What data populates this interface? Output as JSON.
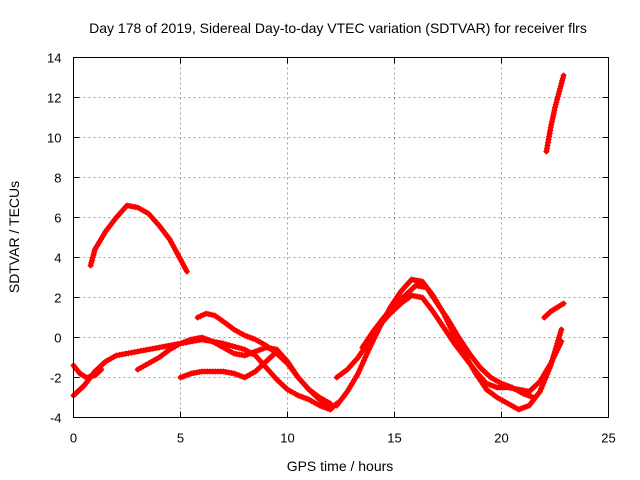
{
  "chart_data": {
    "type": "scatter",
    "title": "Day 178 of 2019, Sidereal Day-to-day VTEC variation (SDTVAR) for receiver flrs",
    "xlabel": "GPS time / hours",
    "ylabel": "SDTVAR / TECUs",
    "xlim": [
      0,
      25
    ],
    "ylim": [
      -4,
      14
    ],
    "xticks": [
      "0",
      "5",
      "10",
      "15",
      "20",
      "25"
    ],
    "yticks": [
      "-4",
      "-2",
      "0",
      "2",
      "4",
      "6",
      "8",
      "10",
      "12",
      "14"
    ],
    "grid": true,
    "marker": "plus",
    "color": "#ff0000",
    "series": [
      {
        "name": "arc1",
        "x": [
          0.8,
          1.0,
          1.5,
          2.0,
          2.5,
          3.0,
          3.5,
          4.0,
          4.5,
          5.0,
          5.3
        ],
        "y": [
          3.6,
          4.4,
          5.3,
          6.0,
          6.6,
          6.5,
          6.2,
          5.6,
          4.9,
          3.9,
          3.3
        ]
      },
      {
        "name": "arc2",
        "x": [
          0.0,
          0.5,
          1.0,
          1.5,
          2.0,
          3.0,
          4.0,
          5.0,
          6.0,
          7.0,
          8.0,
          8.5,
          9.0,
          9.5,
          10.0,
          10.5,
          11.0,
          11.5,
          12.0,
          12.3
        ],
        "y": [
          -2.9,
          -2.4,
          -1.7,
          -1.2,
          -0.9,
          -0.7,
          -0.5,
          -0.3,
          -0.1,
          -0.3,
          -0.6,
          -0.9,
          -1.5,
          -2.1,
          -2.6,
          -2.9,
          -3.1,
          -3.4,
          -3.6,
          -3.3
        ]
      },
      {
        "name": "arc3",
        "x": [
          0.0,
          0.3,
          0.6,
          1.0,
          1.3
        ],
        "y": [
          -1.4,
          -1.8,
          -2.0,
          -1.9,
          -1.6
        ]
      },
      {
        "name": "arc4",
        "x": [
          3.0,
          3.5,
          4.0,
          4.5,
          5.0,
          5.5,
          6.0,
          6.5,
          7.0,
          7.5,
          8.0,
          8.5,
          9.0,
          9.5,
          10.0,
          10.5,
          11.0,
          11.5,
          12.0
        ],
        "y": [
          -1.6,
          -1.3,
          -1.0,
          -0.6,
          -0.3,
          -0.1,
          0.0,
          -0.2,
          -0.5,
          -0.8,
          -0.9,
          -0.7,
          -0.5,
          -0.6,
          -1.2,
          -2.0,
          -2.6,
          -3.0,
          -3.3
        ]
      },
      {
        "name": "arc5",
        "x": [
          5.8,
          6.2,
          6.6,
          7.0,
          7.5,
          8.0,
          8.5,
          9.0,
          9.5,
          10.0,
          10.5,
          11.0,
          11.5,
          12.0
        ],
        "y": [
          1.0,
          1.2,
          1.1,
          0.8,
          0.4,
          0.1,
          -0.1,
          -0.4,
          -0.8,
          -1.3,
          -2.0,
          -2.6,
          -3.1,
          -3.5
        ]
      },
      {
        "name": "arc6",
        "x": [
          5.0,
          5.5,
          6.0,
          6.5,
          7.0,
          7.5,
          8.0,
          8.5,
          9.0,
          9.5
        ],
        "y": [
          -2.0,
          -1.8,
          -1.7,
          -1.7,
          -1.7,
          -1.8,
          -2.0,
          -1.7,
          -1.2,
          -0.7
        ]
      },
      {
        "name": "arc7",
        "x": [
          12.3,
          12.8,
          13.3,
          13.8,
          14.3,
          14.8,
          15.3,
          15.8,
          16.3,
          16.8,
          17.3,
          17.8,
          18.3,
          18.8,
          19.3,
          19.8,
          20.3,
          20.8,
          21.3,
          21.8,
          22.3,
          22.8
        ],
        "y": [
          -2.0,
          -1.6,
          -1.0,
          -0.2,
          0.6,
          1.2,
          1.7,
          2.1,
          2.0,
          1.3,
          0.5,
          -0.3,
          -1.0,
          -1.7,
          -2.3,
          -2.5,
          -2.5,
          -2.6,
          -2.7,
          -2.2,
          -1.3,
          -0.2
        ]
      },
      {
        "name": "arc8",
        "x": [
          12.3,
          12.8,
          13.3,
          13.8,
          14.3,
          14.8,
          15.3,
          15.8,
          16.3,
          16.8,
          17.3,
          17.8,
          18.3,
          18.8,
          19.3,
          19.8,
          20.3,
          20.8,
          21.3,
          21.8,
          22.3,
          22.8
        ],
        "y": [
          -3.4,
          -2.7,
          -1.8,
          -0.6,
          0.5,
          1.5,
          2.3,
          2.9,
          2.8,
          2.1,
          1.2,
          0.1,
          -0.9,
          -1.8,
          -2.6,
          -3.0,
          -3.3,
          -3.6,
          -3.4,
          -2.7,
          -1.4,
          0.4
        ]
      },
      {
        "name": "arc9",
        "x": [
          13.5,
          14.0,
          14.5,
          15.0,
          15.5,
          16.0,
          16.5,
          17.0,
          17.5,
          18.0,
          18.5,
          19.0,
          19.5,
          20.0,
          20.5,
          21.0,
          21.5
        ],
        "y": [
          -0.5,
          0.3,
          1.0,
          1.6,
          2.1,
          2.6,
          2.5,
          1.7,
          0.9,
          0.0,
          -0.8,
          -1.5,
          -2.0,
          -2.3,
          -2.5,
          -2.8,
          -3.0
        ]
      },
      {
        "name": "arc10",
        "x": [
          22.0,
          22.3,
          22.6,
          22.9
        ],
        "y": [
          1.0,
          1.3,
          1.5,
          1.7
        ]
      },
      {
        "name": "arc11",
        "x": [
          22.1,
          22.3,
          22.5,
          22.7,
          22.9
        ],
        "y": [
          9.3,
          10.5,
          11.5,
          12.3,
          13.1
        ]
      }
    ]
  }
}
